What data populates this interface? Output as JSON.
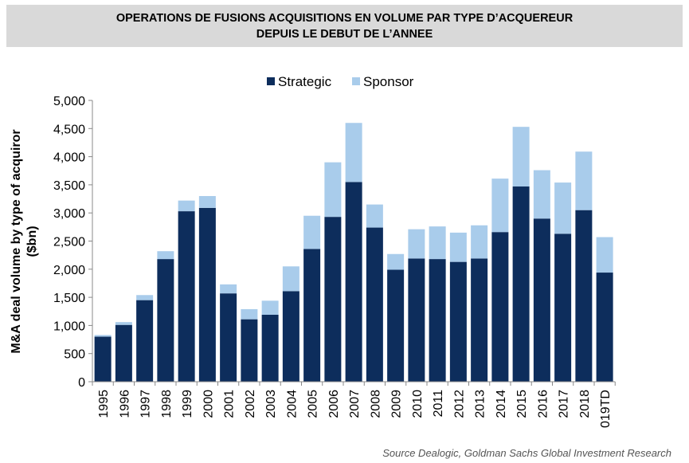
{
  "header": {
    "title_line1": "OPERATIONS DE FUSIONS ACQUISITIONS EN VOLUME PAR TYPE D’ACQUEREUR",
    "title_line2": "DEPUIS LE DEBUT DE L’ANNEE"
  },
  "source": "Source Dealogic, Goldman Sachs Global Investment Research",
  "colors": {
    "strategic": "#0d2d5c",
    "sponsor": "#a9cceb"
  },
  "chart_data": {
    "type": "bar",
    "stacked": true,
    "categories": [
      "1995",
      "1996",
      "1997",
      "1998",
      "1999",
      "2000",
      "2001",
      "2002",
      "2003",
      "2004",
      "2005",
      "2006",
      "2007",
      "2008",
      "2009",
      "2010",
      "2011",
      "2012",
      "2013",
      "2014",
      "2015",
      "2016",
      "2017",
      "2018",
      "019TD"
    ],
    "series": [
      {
        "name": "Strategic",
        "values": [
          800,
          1010,
          1450,
          2180,
          3030,
          3090,
          1570,
          1110,
          1190,
          1610,
          2360,
          2930,
          3550,
          2740,
          1990,
          2190,
          2180,
          2130,
          2190,
          2660,
          3470,
          2900,
          2630,
          3050,
          1940
        ]
      },
      {
        "name": "Sponsor",
        "values": [
          30,
          50,
          90,
          140,
          190,
          210,
          160,
          180,
          250,
          440,
          590,
          970,
          1050,
          410,
          280,
          520,
          580,
          520,
          590,
          950,
          1060,
          860,
          910,
          1040,
          630
        ]
      }
    ],
    "ylabel": "M&A deal volume by type of acquiror ($bn)",
    "ylim": [
      0,
      5000
    ],
    "yticks": [
      "0",
      "500",
      "1,000",
      "1,500",
      "2,000",
      "2,500",
      "3,000",
      "3,500",
      "4,000",
      "4,500",
      "5,000"
    ],
    "legend_position": "top-center",
    "grid": false
  }
}
